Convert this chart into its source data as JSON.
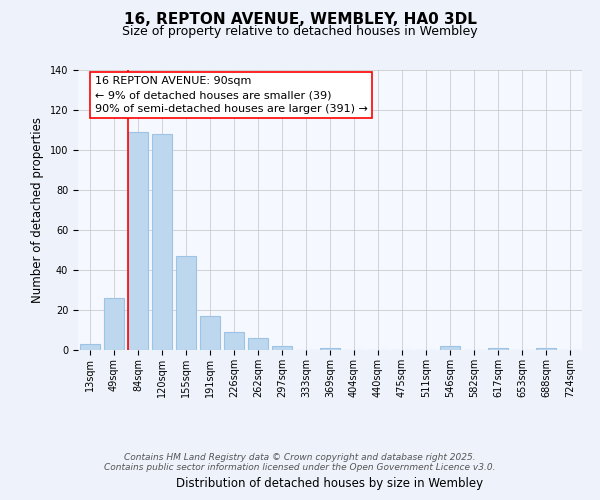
{
  "title": "16, REPTON AVENUE, WEMBLEY, HA0 3DL",
  "subtitle": "Size of property relative to detached houses in Wembley",
  "xlabel": "Distribution of detached houses by size in Wembley",
  "ylabel": "Number of detached properties",
  "bar_labels": [
    "13sqm",
    "49sqm",
    "84sqm",
    "120sqm",
    "155sqm",
    "191sqm",
    "226sqm",
    "262sqm",
    "297sqm",
    "333sqm",
    "369sqm",
    "404sqm",
    "440sqm",
    "475sqm",
    "511sqm",
    "546sqm",
    "582sqm",
    "617sqm",
    "653sqm",
    "688sqm",
    "724sqm"
  ],
  "bar_values": [
    3,
    26,
    109,
    108,
    47,
    17,
    9,
    6,
    2,
    0,
    1,
    0,
    0,
    0,
    0,
    2,
    0,
    1,
    0,
    1,
    0
  ],
  "bar_color": "#bdd7ee",
  "bar_edge_color": "#9dc3e6",
  "ylim": [
    0,
    140
  ],
  "yticks": [
    0,
    20,
    40,
    60,
    80,
    100,
    120,
    140
  ],
  "red_line_index": 2,
  "annotation_title": "16 REPTON AVENUE: 90sqm",
  "annotation_line1": "← 9% of detached houses are smaller (39)",
  "annotation_line2": "90% of semi-detached houses are larger (391) →",
  "footer1": "Contains HM Land Registry data © Crown copyright and database right 2025.",
  "footer2": "Contains public sector information licensed under the Open Government Licence v3.0.",
  "background_color": "#eef2fa",
  "plot_bg_color": "#f5f8ff",
  "grid_color": "#cccccc",
  "title_fontsize": 11,
  "subtitle_fontsize": 9,
  "axis_label_fontsize": 8.5,
  "tick_fontsize": 7,
  "annotation_fontsize": 8,
  "footer_fontsize": 6.5
}
